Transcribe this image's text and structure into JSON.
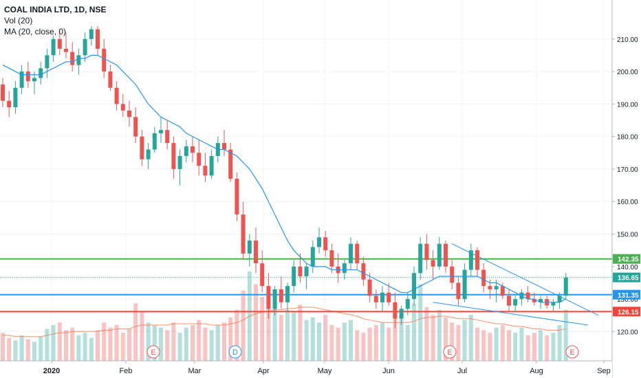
{
  "legend": {
    "title": "COAL INDIA LTD, 1D, NSE",
    "vol": "Vol (20)",
    "ma": "MA (20, close, 0)"
  },
  "chart_data": {
    "type": "candlestick",
    "ylim": [
      111,
      222
    ],
    "y_ticks": [
      "120.00",
      "130.00",
      "140.00",
      "150.00",
      "160.00",
      "170.00",
      "180.00",
      "190.00",
      "200.00",
      "210.00"
    ],
    "x_tick_labels": [
      "2020",
      "Feb",
      "Mar",
      "Apr",
      "May",
      "Jun",
      "Jul",
      "Aug",
      "Sep"
    ],
    "grid": true,
    "horizontal_levels": [
      {
        "label": "142.35",
        "value": 142.35,
        "color": "#4caf50"
      },
      {
        "label": "131.35",
        "value": 131.35,
        "color": "#2196f3"
      },
      {
        "label": "126.15",
        "value": 126.15,
        "color": "#f44336"
      }
    ],
    "last_price": {
      "label": "136.65",
      "value": 136.65,
      "color": "#26a69a"
    },
    "event_markers": [
      {
        "label": "E",
        "color": "#ef5350"
      },
      {
        "label": "D",
        "color": "#2196f3"
      },
      {
        "label": "E",
        "color": "#ef5350"
      },
      {
        "label": "E",
        "color": "#ef5350"
      }
    ],
    "colors": {
      "up": "#26a69a",
      "down": "#ef5350",
      "ma": "#2196f3",
      "vol_ma": "#ff7043",
      "trendline": "#2196f3"
    },
    "candles": [
      [
        196,
        198,
        189,
        191
      ],
      [
        191,
        194,
        186,
        189
      ],
      [
        189,
        197,
        187,
        195
      ],
      [
        195,
        202,
        193,
        200
      ],
      [
        200,
        203,
        195,
        197
      ],
      [
        197,
        200,
        193,
        198
      ],
      [
        198,
        203,
        196,
        201
      ],
      [
        201,
        207,
        198,
        205
      ],
      [
        205,
        211,
        203,
        210
      ],
      [
        210,
        213,
        205,
        207
      ],
      [
        207,
        212,
        204,
        206
      ],
      [
        206,
        209,
        200,
        202
      ],
      [
        202,
        207,
        199,
        205
      ],
      [
        205,
        212,
        203,
        210
      ],
      [
        210,
        214,
        208,
        213
      ],
      [
        213,
        214,
        205,
        207
      ],
      [
        207,
        210,
        198,
        200
      ],
      [
        200,
        202,
        194,
        195
      ],
      [
        195,
        197,
        188,
        190
      ],
      [
        190,
        193,
        186,
        188
      ],
      [
        188,
        191,
        183,
        186
      ],
      [
        186,
        189,
        178,
        180
      ],
      [
        180,
        182,
        171,
        173
      ],
      [
        173,
        178,
        170,
        176
      ],
      [
        176,
        183,
        175,
        181
      ],
      [
        181,
        186,
        178,
        182
      ],
      [
        182,
        185,
        176,
        178
      ],
      [
        178,
        180,
        167,
        170
      ],
      [
        170,
        176,
        165,
        174
      ],
      [
        174,
        179,
        172,
        177
      ],
      [
        177,
        180,
        172,
        175
      ],
      [
        175,
        179,
        168,
        171
      ],
      [
        171,
        175,
        166,
        168
      ],
      [
        168,
        176,
        167,
        174
      ],
      [
        174,
        180,
        172,
        178
      ],
      [
        178,
        182,
        174,
        176
      ],
      [
        176,
        178,
        166,
        167
      ],
      [
        167,
        169,
        154,
        156
      ],
      [
        156,
        160,
        142,
        144
      ],
      [
        144,
        150,
        140,
        148
      ],
      [
        148,
        152,
        138,
        141
      ],
      [
        141,
        145,
        132,
        134
      ],
      [
        134,
        138,
        124,
        127
      ],
      [
        127,
        134,
        125,
        133
      ],
      [
        133,
        137,
        127,
        129
      ],
      [
        129,
        135,
        126,
        134
      ],
      [
        134,
        142,
        132,
        140
      ],
      [
        140,
        144,
        135,
        137
      ],
      [
        137,
        141,
        133,
        140
      ],
      [
        140,
        148,
        138,
        146
      ],
      [
        146,
        152,
        144,
        149
      ],
      [
        149,
        151,
        143,
        145
      ],
      [
        145,
        147,
        138,
        140
      ],
      [
        140,
        144,
        135,
        138
      ],
      [
        138,
        142,
        136,
        141
      ],
      [
        141,
        149,
        139,
        147
      ],
      [
        147,
        148,
        139,
        141
      ],
      [
        141,
        143,
        134,
        136
      ],
      [
        136,
        138,
        129,
        131
      ],
      [
        131,
        133,
        127,
        129
      ],
      [
        129,
        134,
        126,
        132
      ],
      [
        132,
        135,
        128,
        129
      ],
      [
        129,
        132,
        121,
        124
      ],
      [
        124,
        128,
        122,
        127
      ],
      [
        127,
        132,
        125,
        130
      ],
      [
        130,
        140,
        128,
        138
      ],
      [
        138,
        149,
        136,
        147
      ],
      [
        147,
        150,
        139,
        142
      ],
      [
        142,
        145,
        136,
        140
      ],
      [
        140,
        149,
        139,
        147
      ],
      [
        147,
        148,
        138,
        140
      ],
      [
        140,
        142,
        133,
        135
      ],
      [
        135,
        137,
        128,
        130
      ],
      [
        130,
        141,
        129,
        139
      ],
      [
        139,
        147,
        137,
        145
      ],
      [
        145,
        146,
        137,
        139
      ],
      [
        139,
        141,
        132,
        134
      ],
      [
        134,
        136,
        130,
        133
      ],
      [
        133,
        136,
        129,
        134
      ],
      [
        134,
        135,
        130,
        131
      ],
      [
        131,
        133,
        126,
        128
      ],
      [
        128,
        131,
        126,
        130
      ],
      [
        130,
        133,
        128,
        132
      ],
      [
        132,
        134,
        129,
        130
      ],
      [
        130,
        132,
        128,
        129
      ],
      [
        129,
        131,
        127,
        130
      ],
      [
        130,
        131,
        127,
        128
      ],
      [
        128,
        130,
        126,
        129
      ],
      [
        129,
        132,
        127,
        131
      ],
      [
        131,
        138,
        130,
        136.65
      ]
    ],
    "volumes": [
      22,
      18,
      16,
      20,
      17,
      15,
      19,
      25,
      28,
      30,
      24,
      26,
      20,
      22,
      18,
      24,
      30,
      26,
      28,
      22,
      25,
      45,
      38,
      30,
      28,
      26,
      24,
      30,
      22,
      26,
      28,
      32,
      26,
      24,
      28,
      30,
      34,
      40,
      55,
      70,
      60,
      50,
      42,
      48,
      36,
      40,
      38,
      44,
      32,
      34,
      30,
      36,
      28,
      26,
      30,
      32,
      24,
      22,
      26,
      28,
      30,
      26,
      40,
      34,
      28,
      45,
      60,
      42,
      36,
      40,
      34,
      30,
      28,
      32,
      36,
      26,
      24,
      22,
      26,
      28,
      24,
      22,
      26,
      20,
      22,
      24,
      20,
      22,
      28,
      40
    ],
    "volume_ma": [
      20,
      20,
      19,
      19,
      19,
      19,
      19,
      20,
      21,
      22,
      22,
      23,
      23,
      23,
      23,
      23,
      24,
      24,
      25,
      25,
      25,
      27,
      28,
      28,
      28,
      28,
      28,
      29,
      29,
      29,
      29,
      29,
      29,
      28,
      28,
      28,
      29,
      30,
      32,
      35,
      37,
      38,
      39,
      40,
      40,
      41,
      41,
      42,
      42,
      42,
      41,
      40,
      39,
      38,
      37,
      36,
      35,
      33,
      32,
      31,
      30,
      30,
      30,
      30,
      30,
      31,
      33,
      34,
      34,
      35,
      35,
      34,
      33,
      33,
      33,
      32,
      31,
      30,
      29,
      29,
      28,
      27,
      27,
      26,
      25,
      25,
      24,
      24,
      24,
      25
    ],
    "ma": [
      202,
      201,
      200,
      199,
      199,
      199,
      199,
      200,
      201,
      202,
      203,
      203,
      204,
      204,
      205,
      205,
      204,
      203,
      202,
      200,
      198,
      196,
      193,
      190,
      188,
      186,
      185,
      184,
      183,
      181,
      180,
      179,
      178,
      177,
      176,
      176,
      175,
      174,
      172,
      170,
      167,
      164,
      160,
      156,
      152,
      148,
      145,
      143,
      141,
      140,
      140,
      140,
      139,
      139,
      139,
      139,
      139,
      138,
      137,
      136,
      135,
      134,
      133,
      132,
      132,
      133,
      134,
      135,
      136,
      137,
      137,
      137,
      137,
      137,
      137,
      137,
      136,
      135,
      135,
      134,
      133,
      132,
      131,
      130,
      130,
      129,
      129,
      129,
      129,
      130
    ]
  }
}
